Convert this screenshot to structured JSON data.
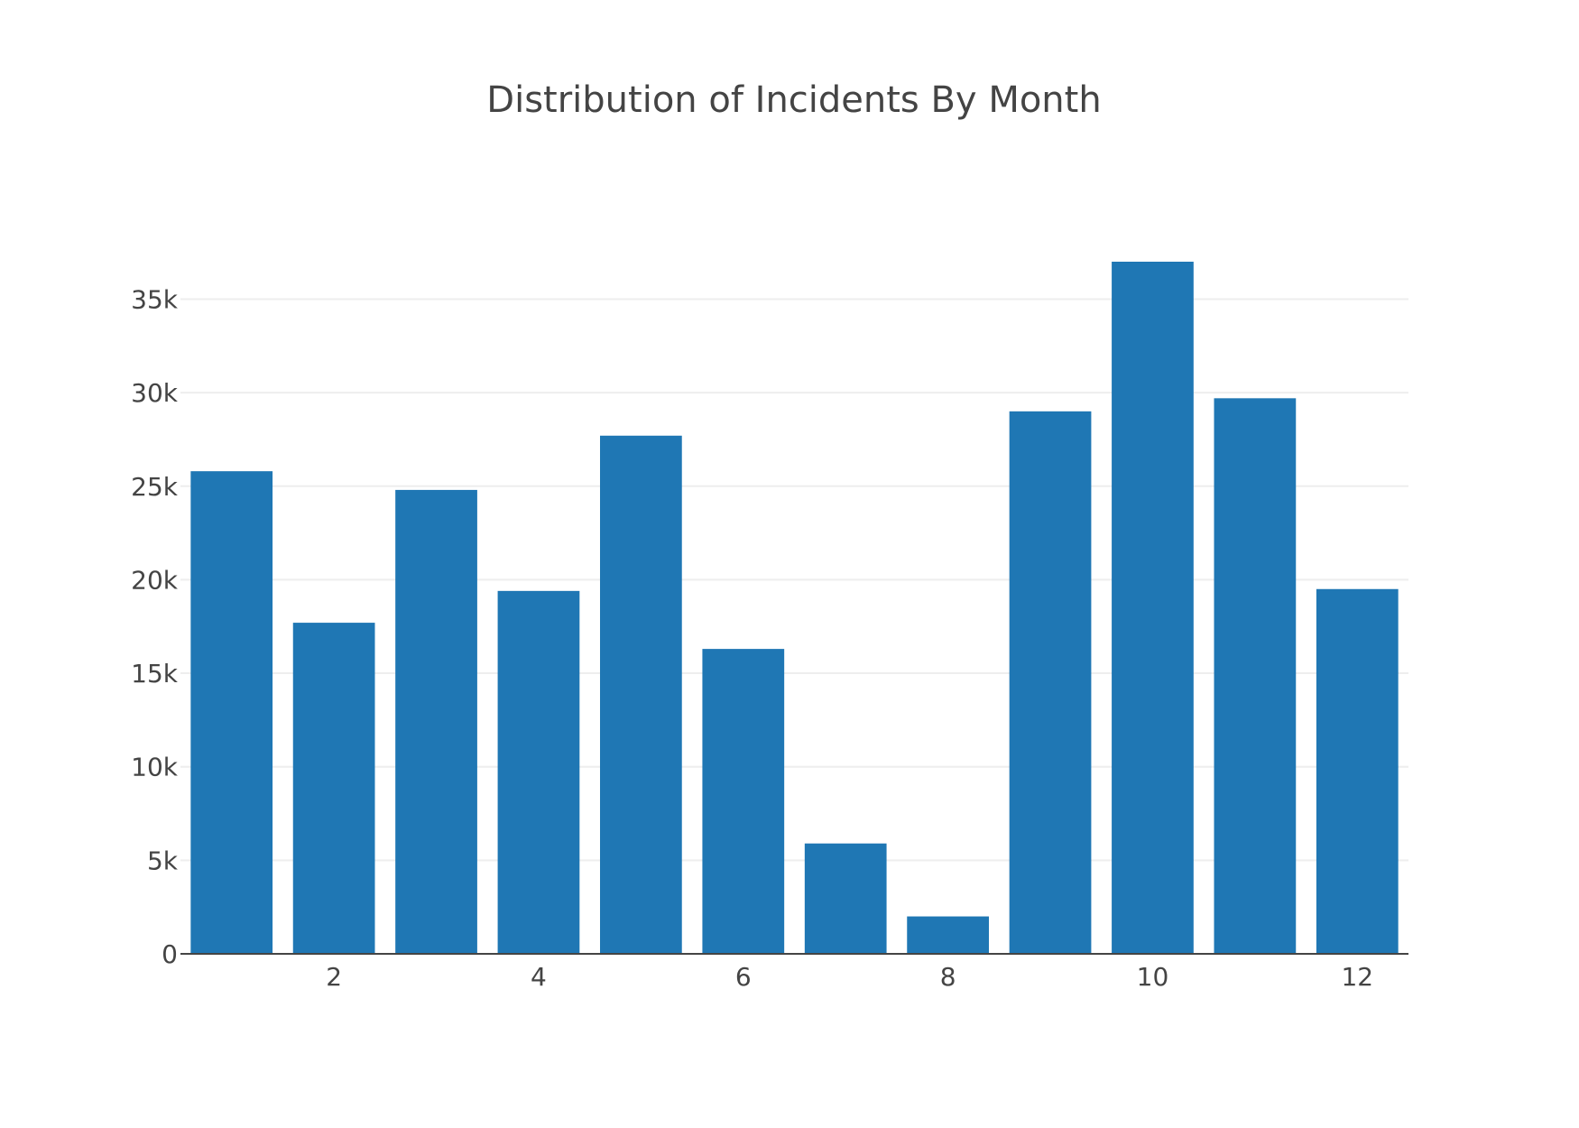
{
  "chart_data": {
    "type": "bar",
    "title": "Distribution of Incidents By Month",
    "xlabel": "",
    "ylabel": "",
    "x": [
      1,
      2,
      3,
      4,
      5,
      6,
      7,
      8,
      9,
      10,
      11,
      12
    ],
    "values": [
      25800,
      17700,
      24800,
      19400,
      27700,
      16300,
      5900,
      2000,
      29000,
      37000,
      29700,
      19500
    ],
    "x_tick_values": [
      2,
      4,
      6,
      8,
      10,
      12
    ],
    "x_tick_labels": [
      "2",
      "4",
      "6",
      "8",
      "10",
      "12"
    ],
    "xlim": [
      0.5,
      12.5
    ],
    "y_tick_values": [
      0,
      5000,
      10000,
      15000,
      20000,
      25000,
      30000,
      35000
    ],
    "y_tick_labels": [
      "0",
      "5k",
      "10k",
      "15k",
      "20k",
      "25k",
      "30k",
      "35k"
    ],
    "ylim": [
      0,
      37000
    ],
    "grid": true,
    "bar_color": "#1f77b4",
    "grid_color": "#eeeeee",
    "axis_color": "#444444",
    "text_color": "#444444"
  }
}
